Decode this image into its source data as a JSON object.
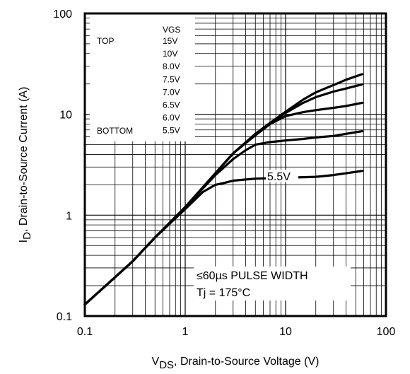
{
  "chart_data": {
    "type": "line",
    "x_scale": "log",
    "y_scale": "log",
    "xlim": [
      0.1,
      100
    ],
    "ylim": [
      0.1,
      100
    ],
    "grid": true,
    "x_ticks": [
      "0.1",
      "1",
      "10",
      "100"
    ],
    "y_ticks": [
      "0.1",
      "1",
      "10",
      "100"
    ],
    "xlabel": {
      "main": "V",
      "sub": "DS",
      "rest": ", Drain-to-Source Voltage (V)"
    },
    "ylabel": {
      "main": "I",
      "sub": "D",
      "rest": ", Drain-to-Source Current (A)"
    },
    "legend": {
      "position": "top-left",
      "header": "VGS",
      "top_label": "TOP",
      "bottom_label": "BOTTOM",
      "entries": [
        "15V",
        "10V",
        "8.0V",
        "7.5V",
        "7.0V",
        "6.5V",
        "6.0V",
        "5.5V"
      ]
    },
    "annotations": {
      "curve_label": "5.5V",
      "pulse": "≤60µs PULSE WIDTH",
      "tj": "Tj = 175°C"
    },
    "series": [
      {
        "name": "15V",
        "x": [
          0.1,
          0.18,
          0.3,
          0.5,
          1,
          2,
          3,
          5,
          7,
          10,
          15,
          20,
          30,
          40,
          58
        ],
        "y": [
          0.13,
          0.22,
          0.35,
          0.6,
          1.2,
          2.6,
          4.1,
          6.4,
          8.2,
          10.6,
          14,
          16.5,
          19.5,
          22,
          25
        ]
      },
      {
        "name": "10V",
        "x": [
          0.1,
          0.18,
          0.3,
          0.5,
          1,
          2,
          3,
          5,
          7,
          10,
          15,
          20,
          30,
          40,
          58
        ],
        "y": [
          0.13,
          0.22,
          0.35,
          0.6,
          1.2,
          2.6,
          4.1,
          6.4,
          8.2,
          10.3,
          13,
          14.8,
          16.8,
          18,
          19.8
        ]
      },
      {
        "name": "6.5V",
        "x": [
          0.1,
          0.18,
          0.3,
          0.5,
          1,
          2,
          3,
          5,
          7,
          10,
          15,
          20,
          30,
          40,
          58
        ],
        "y": [
          0.13,
          0.22,
          0.35,
          0.6,
          1.2,
          2.6,
          4.1,
          6.2,
          8.0,
          9.6,
          10.5,
          11.0,
          11.6,
          12.1,
          13.0
        ]
      },
      {
        "name": "6.0V",
        "x": [
          0.1,
          0.18,
          0.3,
          0.5,
          1,
          2,
          3,
          4,
          5,
          7,
          10,
          15,
          20,
          30,
          40,
          58
        ],
        "y": [
          0.13,
          0.22,
          0.35,
          0.6,
          1.2,
          2.5,
          3.6,
          4.4,
          5.0,
          5.3,
          5.5,
          5.7,
          5.9,
          6.1,
          6.4,
          6.8
        ]
      },
      {
        "name": "5.5V",
        "x": [
          0.1,
          0.18,
          0.3,
          0.5,
          1,
          1.5,
          2,
          2.5,
          3,
          5,
          10,
          20,
          30,
          40,
          58
        ],
        "y": [
          0.13,
          0.22,
          0.35,
          0.6,
          1.15,
          1.7,
          2.0,
          2.1,
          2.2,
          2.3,
          2.35,
          2.4,
          2.5,
          2.6,
          2.75
        ]
      }
    ]
  }
}
